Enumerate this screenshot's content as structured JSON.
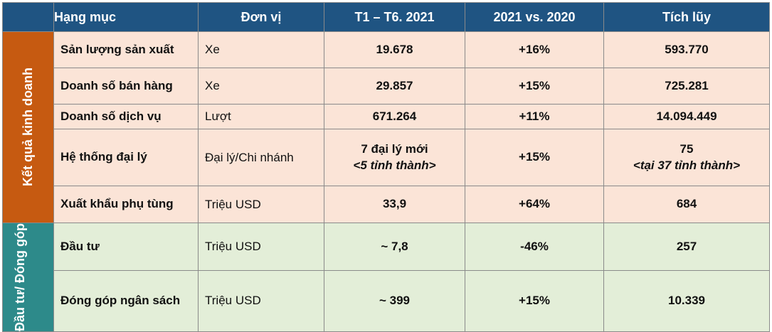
{
  "header": {
    "category": "Hạng mục",
    "unit": "Đơn vị",
    "period": "T1 – T6. 2021",
    "growth": "2021 vs. 2020",
    "cumulative": "Tích lũy"
  },
  "groups": {
    "business": "Kết quả kinh doanh",
    "investment": "Đầu tư/ Đóng góp"
  },
  "rows": [
    {
      "name": "Sản lượng sản xuất",
      "unit": "Xe",
      "period": "19.678",
      "growth": "+16%",
      "cumulative": "593.770"
    },
    {
      "name": "Doanh số bán hàng",
      "unit": "Xe",
      "period": "29.857",
      "growth": "+15%",
      "cumulative": "725.281"
    },
    {
      "name": "Doanh số dịch vụ",
      "unit": "Lượt",
      "period": "671.264",
      "growth": "+11%",
      "cumulative": "14.094.449"
    },
    {
      "name": "Hệ thống đại lý",
      "unit": "Đại lý/Chi nhánh",
      "period": "7 đại lý mới",
      "period_sub": "<5 tỉnh thành>",
      "growth": "+15%",
      "cumulative": "75",
      "cumulative_sub": "<tại 37 tỉnh thành>"
    },
    {
      "name": "Xuất khẩu phụ tùng",
      "unit": "Triệu USD",
      "period": "33,9",
      "growth": "+64%",
      "cumulative": "684"
    },
    {
      "name": "Đầu tư",
      "unit": "Triệu USD",
      "period": "~ 7,8",
      "growth": "-46%",
      "cumulative": "257"
    },
    {
      "name": "Đóng góp ngân sách",
      "unit": "Triệu USD",
      "period": "~ 399",
      "growth": "+15%",
      "cumulative": "10.339"
    }
  ]
}
